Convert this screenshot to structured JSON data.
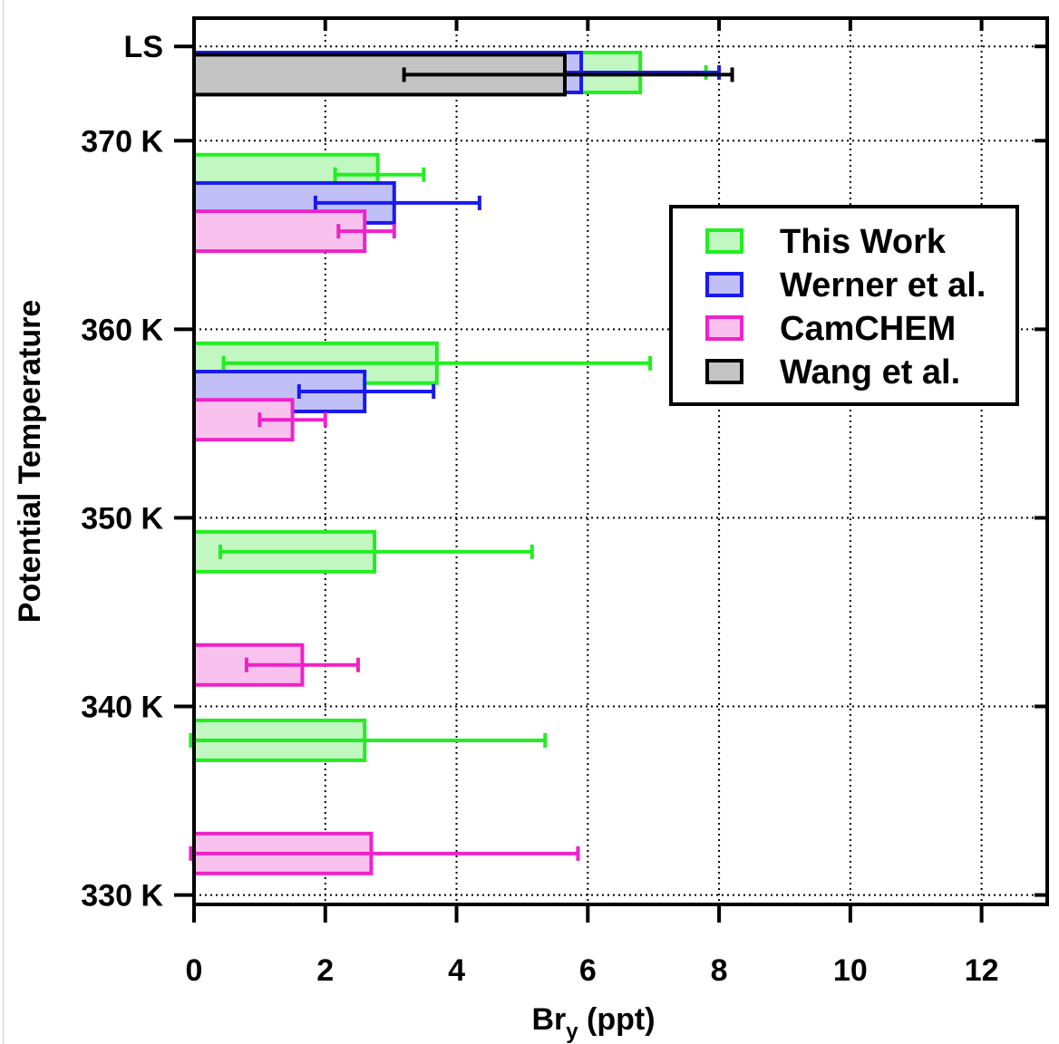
{
  "chart_data": {
    "type": "bar",
    "orientation": "horizontal",
    "xlabel_main": "Br",
    "xlabel_sub": "y",
    "xlabel_rest": " (ppt)",
    "ylabel": "Potential Temperature",
    "xlim": [
      0,
      13
    ],
    "xticks": [
      0,
      2,
      4,
      6,
      8,
      10,
      12
    ],
    "xtick_labels": [
      "0",
      "2",
      "4",
      "6",
      "8",
      "10",
      "12"
    ],
    "ylim": [
      329.5,
      376.5
    ],
    "yticks": [
      330,
      340,
      350,
      360,
      370,
      375
    ],
    "ytick_labels": [
      "330 K",
      "340 K",
      "350 K",
      "360 K",
      "370 K",
      "LS"
    ],
    "grid": true,
    "legend_position": "top-right",
    "series": [
      {
        "name": "This Work",
        "fill": "#c2f7c2",
        "stroke": "#22ee22"
      },
      {
        "name": "Werner et al.",
        "fill": "#c0c0f7",
        "stroke": "#1a1aee"
      },
      {
        "name": "CamCHEM",
        "fill": "#f9c2ee",
        "stroke": "#ee22c8"
      },
      {
        "name": "Wang et al.",
        "fill": "#c4c4c4",
        "stroke": "#000000"
      }
    ],
    "bars": [
      {
        "series": 0,
        "y": 376.5,
        "value": 6.8,
        "err_low": 5.9,
        "err_high": 7.8
      },
      {
        "series": 1,
        "y": 375.0,
        "value": 5.9,
        "err_low": 3.9,
        "err_high": 8.0
      },
      {
        "series": 3,
        "y": 373.5,
        "value": 5.65,
        "err_low": 3.2,
        "err_high": 8.2
      },
      {
        "series": 0,
        "y": 368.2,
        "value": 2.8,
        "err_low": 2.15,
        "err_high": 3.5
      },
      {
        "series": 1,
        "y": 366.7,
        "value": 3.05,
        "err_low": 1.85,
        "err_high": 4.35
      },
      {
        "series": 2,
        "y": 365.2,
        "value": 2.6,
        "err_low": 2.2,
        "err_high": 3.05
      },
      {
        "series": 0,
        "y": 358.2,
        "value": 3.7,
        "err_low": 0.45,
        "err_high": 6.95
      },
      {
        "series": 1,
        "y": 356.7,
        "value": 2.6,
        "err_low": 1.6,
        "err_high": 3.65
      },
      {
        "series": 2,
        "y": 355.2,
        "value": 1.5,
        "err_low": 1.0,
        "err_high": 2.0
      },
      {
        "series": 0,
        "y": 348.2,
        "value": 2.75,
        "err_low": 0.4,
        "err_high": 5.15
      },
      {
        "series": 2,
        "y": 342.2,
        "value": 1.65,
        "err_low": 0.8,
        "err_high": 2.5
      },
      {
        "series": 0,
        "y": 338.2,
        "value": 2.6,
        "err_low": -0.05,
        "err_high": 5.35
      },
      {
        "series": 2,
        "y": 332.2,
        "value": 2.7,
        "err_low": -0.05,
        "err_high": 5.85
      }
    ]
  }
}
